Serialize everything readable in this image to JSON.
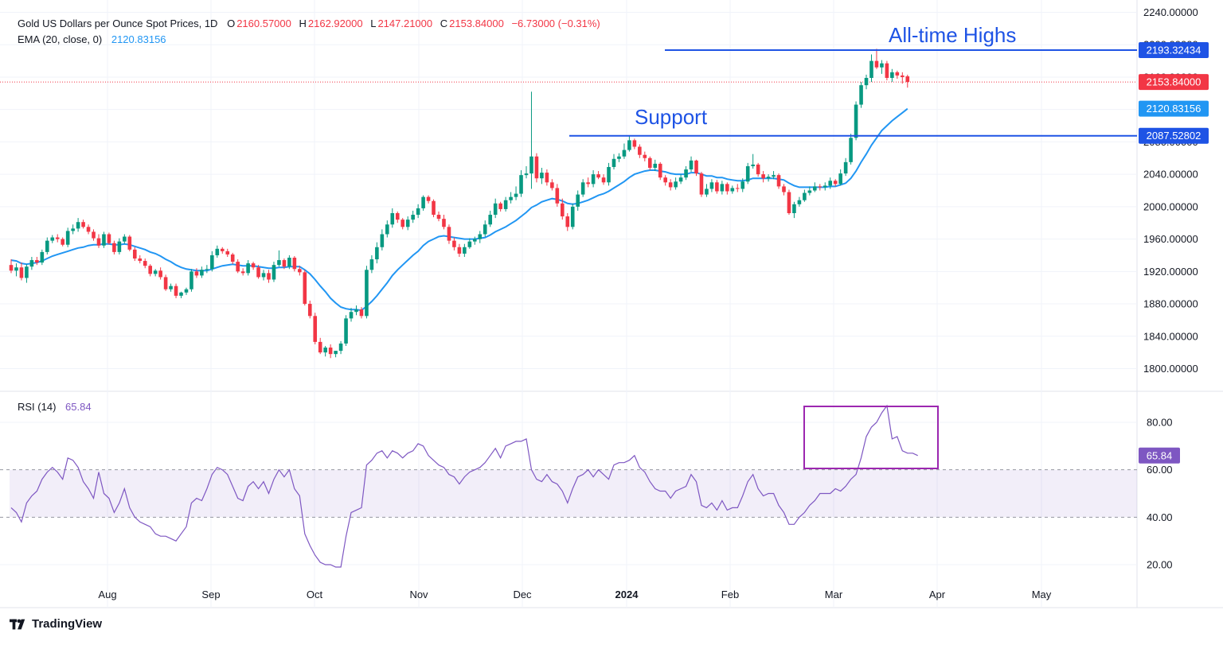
{
  "header": {
    "title": "Gold US Dollars per Ounce Spot Prices, 1D",
    "open_label": "O",
    "open": "2160.57000",
    "high_label": "H",
    "high": "2162.92000",
    "low_label": "L",
    "low": "2147.21000",
    "close_label": "C",
    "close": "2153.84000",
    "change": "−6.73000 (−0.31%)",
    "ema_label": "EMA (20, close, 0)",
    "ema_value": "2120.83156"
  },
  "rsi_legend": {
    "label": "RSI (14)",
    "value": "65.84"
  },
  "brand": "TradingView",
  "colors": {
    "up": "#089981",
    "down": "#f23645",
    "ema": "#2196f3",
    "rsi": "#7e57c2",
    "annotation": "#1e53e5",
    "box": "#9c27b0"
  },
  "annotations": {
    "all_time_highs": {
      "text": "All-time Highs",
      "value": 2193.32434,
      "label": "2193.32434"
    },
    "support": {
      "text": "Support",
      "value": 2087.52802,
      "label": "2087.52802"
    }
  },
  "price_labels": {
    "last": "2153.84000",
    "ema": "2120.83156",
    "rsi": "65.84"
  },
  "chart_data": [
    {
      "type": "candlestick",
      "y_ticks": [
        "2240.00000",
        "2200.00000",
        "2160.00000",
        "2120.00000",
        "2080.00000",
        "2040.00000",
        "2000.00000",
        "1960.00000",
        "1920.00000",
        "1880.00000",
        "1840.00000",
        "1800.00000"
      ],
      "x_ticks": [
        "Aug",
        "Sep",
        "Oct",
        "Nov",
        "Dec",
        "2024",
        "Feb",
        "Mar",
        "Apr",
        "May"
      ],
      "ylim": [
        1775,
        2245
      ],
      "grid": true,
      "closes": [
        1921,
        1925,
        1912,
        1926,
        1934,
        1931,
        1944,
        1958,
        1962,
        1960,
        1953,
        1970,
        1973,
        1981,
        1975,
        1969,
        1961,
        1952,
        1966,
        1955,
        1944,
        1957,
        1963,
        1947,
        1936,
        1933,
        1927,
        1917,
        1921,
        1913,
        1898,
        1902,
        1890,
        1894,
        1898,
        1920,
        1915,
        1922,
        1923,
        1940,
        1948,
        1945,
        1941,
        1932,
        1920,
        1918,
        1930,
        1925,
        1913,
        1918,
        1910,
        1928,
        1934,
        1926,
        1937,
        1923,
        1919,
        1880,
        1865,
        1833,
        1820,
        1826,
        1818,
        1822,
        1831,
        1862,
        1870,
        1873,
        1865,
        1922,
        1935,
        1950,
        1966,
        1978,
        1992,
        1984,
        1975,
        1984,
        1990,
        1998,
        2012,
        2007,
        1990,
        1985,
        1975,
        1958,
        1950,
        1942,
        1950,
        1957,
        1960,
        1966,
        1978,
        1990,
        2004,
        1997,
        2008,
        2012,
        2016,
        2039,
        2041,
        2062,
        2035,
        2042,
        2030,
        2023,
        2004,
        1988,
        1975,
        2000,
        2015,
        2030,
        2028,
        2040,
        2036,
        2030,
        2049,
        2059,
        2062,
        2070,
        2082,
        2074,
        2064,
        2060,
        2048,
        2053,
        2036,
        2030,
        2024,
        2031,
        2036,
        2046,
        2057,
        2041,
        2015,
        2022,
        2030,
        2019,
        2028,
        2019,
        2023,
        2022,
        2031,
        2050,
        2052,
        2040,
        2035,
        2037,
        2039,
        2025,
        2018,
        1992,
        2003,
        2008,
        2017,
        2020,
        2025,
        2024,
        2026,
        2032,
        2028,
        2041,
        2055,
        2085,
        2126,
        2150,
        2159,
        2180,
        2172,
        2177,
        2159,
        2166,
        2162,
        2160,
        2154
      ],
      "opens": [
        1928,
        1921,
        1925,
        1912,
        1926,
        1934,
        1931,
        1944,
        1958,
        1962,
        1960,
        1953,
        1970,
        1973,
        1981,
        1975,
        1969,
        1961,
        1952,
        1966,
        1955,
        1944,
        1957,
        1963,
        1947,
        1936,
        1933,
        1927,
        1917,
        1921,
        1913,
        1898,
        1902,
        1890,
        1894,
        1898,
        1920,
        1915,
        1922,
        1923,
        1940,
        1948,
        1945,
        1941,
        1932,
        1920,
        1918,
        1930,
        1925,
        1913,
        1918,
        1910,
        1928,
        1934,
        1926,
        1937,
        1923,
        1919,
        1880,
        1865,
        1833,
        1820,
        1826,
        1818,
        1822,
        1831,
        1862,
        1870,
        1873,
        1865,
        1922,
        1935,
        1950,
        1966,
        1978,
        1992,
        1984,
        1975,
        1984,
        1990,
        1998,
        2012,
        2007,
        1990,
        1985,
        1975,
        1958,
        1950,
        1942,
        1950,
        1957,
        1960,
        1966,
        1978,
        1990,
        2004,
        1997,
        2008,
        2012,
        2016,
        2039,
        2041,
        2062,
        2035,
        2042,
        2030,
        2023,
        2004,
        1988,
        1975,
        2000,
        2015,
        2030,
        2028,
        2040,
        2036,
        2030,
        2049,
        2059,
        2062,
        2070,
        2082,
        2074,
        2064,
        2060,
        2048,
        2053,
        2036,
        2030,
        2024,
        2031,
        2036,
        2046,
        2057,
        2041,
        2015,
        2022,
        2030,
        2019,
        2028,
        2019,
        2023,
        2022,
        2031,
        2050,
        2052,
        2040,
        2035,
        2037,
        2039,
        2025,
        2018,
        1992,
        2003,
        2008,
        2017,
        2020,
        2025,
        2024,
        2026,
        2032,
        2028,
        2041,
        2055,
        2085,
        2126,
        2150,
        2159,
        2180,
        2172,
        2177,
        2159,
        2166,
        2162,
        2161
      ],
      "highs": [
        1935,
        1930,
        1931,
        1929,
        1938,
        1938,
        1947,
        1962,
        1965,
        1966,
        1962,
        1974,
        1978,
        1986,
        1984,
        1978,
        1972,
        1966,
        1969,
        1968,
        1958,
        1961,
        1966,
        1965,
        1950,
        1940,
        1936,
        1929,
        1923,
        1925,
        1916,
        1905,
        1905,
        1895,
        1900,
        1923,
        1924,
        1926,
        1928,
        1945,
        1952,
        1950,
        1948,
        1943,
        1935,
        1924,
        1934,
        1932,
        1928,
        1922,
        1922,
        1932,
        1946,
        1936,
        1940,
        1939,
        1927,
        1922,
        1884,
        1869,
        1838,
        1828,
        1830,
        1822,
        1834,
        1866,
        1875,
        1878,
        1876,
        1927,
        1940,
        1956,
        1972,
        1983,
        1998,
        1994,
        1986,
        1988,
        1995,
        2003,
        2014,
        2014,
        2009,
        1994,
        1990,
        1978,
        1962,
        1954,
        1954,
        1961,
        1963,
        1970,
        1983,
        1995,
        2010,
        2006,
        2012,
        2018,
        2025,
        2045,
        2050,
        2142,
        2066,
        2048,
        2046,
        2034,
        2028,
        2010,
        1992,
        2004,
        2020,
        2034,
        2036,
        2045,
        2044,
        2040,
        2054,
        2065,
        2066,
        2078,
        2088,
        2084,
        2077,
        2068,
        2062,
        2058,
        2055,
        2039,
        2034,
        2036,
        2040,
        2050,
        2062,
        2058,
        2043,
        2028,
        2034,
        2033,
        2032,
        2030,
        2026,
        2028,
        2035,
        2054,
        2065,
        2054,
        2044,
        2040,
        2044,
        2041,
        2028,
        2021,
        2006,
        2012,
        2021,
        2025,
        2030,
        2028,
        2030,
        2036,
        2034,
        2046,
        2060,
        2090,
        2130,
        2154,
        2163,
        2188,
        2195,
        2181,
        2180,
        2170,
        2168,
        2166,
        2163
      ],
      "lows": [
        1918,
        1914,
        1909,
        1906,
        1922,
        1928,
        1928,
        1941,
        1955,
        1956,
        1951,
        1950,
        1966,
        1969,
        1973,
        1966,
        1958,
        1949,
        1949,
        1953,
        1941,
        1941,
        1954,
        1945,
        1933,
        1930,
        1924,
        1914,
        1914,
        1910,
        1896,
        1895,
        1887,
        1887,
        1891,
        1895,
        1912,
        1912,
        1918,
        1920,
        1937,
        1942,
        1938,
        1929,
        1918,
        1915,
        1915,
        1922,
        1911,
        1909,
        1906,
        1907,
        1926,
        1923,
        1923,
        1920,
        1915,
        1878,
        1862,
        1830,
        1818,
        1815,
        1813,
        1814,
        1818,
        1828,
        1858,
        1866,
        1862,
        1862,
        1918,
        1930,
        1946,
        1962,
        1974,
        1980,
        1972,
        1971,
        1980,
        1986,
        1995,
        2004,
        1987,
        1982,
        1972,
        1954,
        1946,
        1938,
        1938,
        1948,
        1953,
        1955,
        1963,
        1975,
        1986,
        1994,
        1994,
        2004,
        2008,
        2012,
        2035,
        2022,
        2030,
        2028,
        2026,
        2020,
        2000,
        1984,
        1970,
        1972,
        1995,
        2012,
        2024,
        2024,
        2034,
        2027,
        2026,
        2046,
        2055,
        2059,
        2068,
        2071,
        2060,
        2056,
        2045,
        2044,
        2033,
        2026,
        2020,
        2021,
        2028,
        2033,
        2043,
        2038,
        2012,
        2012,
        2018,
        2016,
        2015,
        2015,
        2016,
        2018,
        2018,
        2028,
        2047,
        2037,
        2030,
        2031,
        2034,
        2022,
        2014,
        1990,
        1986,
        2000,
        2006,
        2014,
        2018,
        2020,
        2020,
        2022,
        2025,
        2026,
        2038,
        2052,
        2082,
        2122,
        2145,
        2154,
        2170,
        2164,
        2156,
        2154,
        2158,
        2152,
        2147
      ],
      "ema_20": [
        1934,
        1933,
        1930,
        1929,
        1930,
        1931,
        1933,
        1936,
        1939,
        1941,
        1943,
        1945,
        1947,
        1949,
        1950,
        1952,
        1953,
        1953,
        1954,
        1954,
        1953,
        1953,
        1954,
        1953,
        1951,
        1949,
        1947,
        1944,
        1942,
        1939,
        1935,
        1932,
        1928,
        1925,
        1923,
        1922,
        1921,
        1921,
        1921,
        1923,
        1925,
        1927,
        1928,
        1929,
        1928,
        1927,
        1927,
        1927,
        1926,
        1925,
        1924,
        1924,
        1925,
        1925,
        1926,
        1926,
        1926,
        1922,
        1917,
        1910,
        1902,
        1895,
        1887,
        1881,
        1876,
        1874,
        1873,
        1873,
        1872,
        1877,
        1883,
        1890,
        1898,
        1906,
        1915,
        1922,
        1928,
        1934,
        1940,
        1945,
        1952,
        1957,
        1960,
        1963,
        1964,
        1963,
        1962,
        1961,
        1960,
        1960,
        1960,
        1961,
        1962,
        1965,
        1969,
        1972,
        1975,
        1979,
        1983,
        1988,
        1993,
        1999,
        2002,
        2006,
        2008,
        2010,
        2009,
        2007,
        2004,
        2003,
        2004,
        2006,
        2008,
        2011,
        2014,
        2016,
        2019,
        2023,
        2027,
        2031,
        2036,
        2040,
        2042,
        2044,
        2045,
        2045,
        2044,
        2043,
        2041,
        2040,
        2040,
        2040,
        2042,
        2042,
        2040,
        2038,
        2038,
        2036,
        2036,
        2034,
        2033,
        2032,
        2032,
        2033,
        2035,
        2035,
        2035,
        2035,
        2035,
        2034,
        2033,
        2029,
        2026,
        2024,
        2024,
        2024,
        2024,
        2024,
        2024,
        2025,
        2025,
        2027,
        2029,
        2035,
        2044,
        2055,
        2065,
        2076,
        2085,
        2094,
        2100,
        2106,
        2111,
        2116,
        2121
      ],
      "ema_label": "EMA (20, close, 0)"
    },
    {
      "type": "line",
      "name": "RSI (14)",
      "y_ticks": [
        "80.00",
        "60.00",
        "40.00",
        "20.00"
      ],
      "ylim": [
        14,
        87
      ],
      "bands": [
        40,
        60
      ],
      "values": [
        44,
        42,
        38,
        46,
        49,
        51,
        56,
        59,
        61,
        59,
        56,
        65,
        64,
        61,
        55,
        52,
        48,
        59,
        50,
        48,
        42,
        46,
        52,
        44,
        40,
        38,
        37,
        36,
        33,
        32,
        32,
        31,
        30,
        33,
        36,
        46,
        48,
        47,
        52,
        58,
        61,
        60,
        58,
        53,
        48,
        47,
        53,
        55,
        52,
        55,
        50,
        56,
        60,
        57,
        60,
        52,
        49,
        33,
        28,
        24,
        21,
        20,
        20,
        19,
        19,
        32,
        42,
        43,
        44,
        62,
        64,
        67,
        68,
        65,
        68,
        67,
        65,
        67,
        68,
        71,
        70,
        66,
        64,
        62,
        61,
        58,
        57,
        54,
        57,
        59,
        60,
        61,
        63,
        66,
        69,
        65,
        70,
        71,
        72,
        72,
        73,
        60,
        56,
        55,
        58,
        55,
        54,
        51,
        46,
        52,
        57,
        58,
        60,
        57,
        60,
        58,
        56,
        62,
        63,
        63,
        64,
        66,
        61,
        59,
        55,
        52,
        51,
        51,
        48,
        51,
        52,
        53,
        58,
        55,
        45,
        44,
        46,
        43,
        47,
        43,
        44,
        44,
        49,
        55,
        58,
        52,
        49,
        50,
        50,
        45,
        42,
        37,
        37,
        40,
        42,
        45,
        47,
        50,
        50,
        50,
        52,
        51,
        53,
        56,
        58,
        65,
        74,
        78,
        80,
        84,
        87,
        73,
        74,
        68,
        67,
        67,
        66
      ]
    }
  ]
}
